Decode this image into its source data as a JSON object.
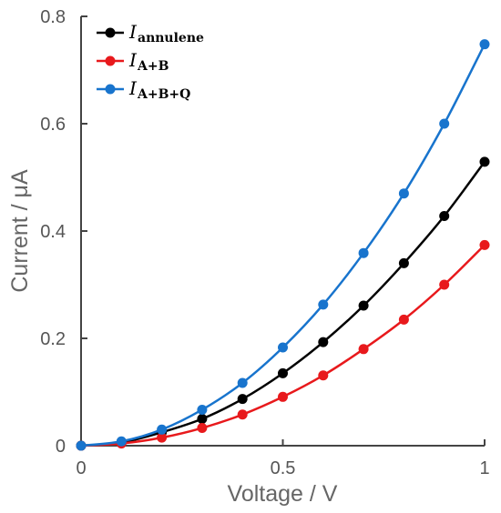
{
  "chart_data": {
    "type": "line",
    "xlabel": "Voltage / V",
    "ylabel": "Current / μA",
    "xlim": [
      0,
      1
    ],
    "ylim": [
      0,
      0.8
    ],
    "x_ticks": [
      "0",
      "0.5",
      "1"
    ],
    "y_ticks": [
      "0",
      "0.2",
      "0.4",
      "0.6",
      "0.8"
    ],
    "x_tick_values": [
      0,
      0.5,
      1
    ],
    "y_tick_values": [
      0,
      0.2,
      0.4,
      0.6,
      0.8
    ],
    "grid": false,
    "legend_position": "top-left",
    "x": [
      0,
      0.1,
      0.2,
      0.3,
      0.4,
      0.5,
      0.6,
      0.7,
      0.8,
      0.9,
      1.0
    ],
    "series": [
      {
        "name": "I",
        "subscript": "annulene",
        "color": "#000000",
        "values": [
          0,
          0.006,
          0.025,
          0.05,
          0.087,
          0.135,
          0.193,
          0.261,
          0.34,
          0.428,
          0.529
        ]
      },
      {
        "name": "I",
        "subscript": "A+B",
        "color": "#e8191c",
        "values": [
          0,
          0.004,
          0.015,
          0.033,
          0.058,
          0.091,
          0.131,
          0.18,
          0.235,
          0.3,
          0.374
        ]
      },
      {
        "name": "I",
        "subscript": "A+B+Q",
        "color": "#1874cd",
        "values": [
          0,
          0.008,
          0.03,
          0.067,
          0.117,
          0.183,
          0.263,
          0.359,
          0.47,
          0.6,
          0.748
        ]
      }
    ]
  }
}
